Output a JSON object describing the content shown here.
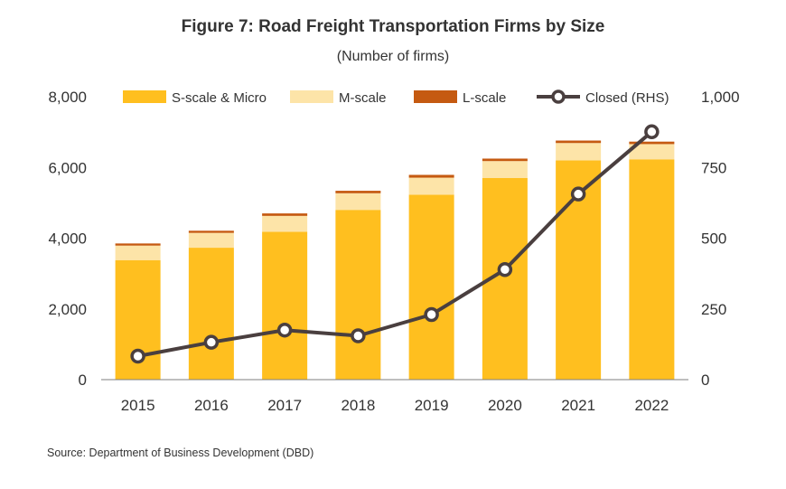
{
  "chart_data": {
    "type": "bar",
    "title": "Figure 7:  Road Freight Transportation Firms by Size",
    "subtitle": "(Number of firms)",
    "categories": [
      "2015",
      "2016",
      "2017",
      "2018",
      "2019",
      "2020",
      "2021",
      "2022"
    ],
    "series": [
      {
        "name": "S-scale & Micro",
        "type": "bar",
        "axis": "left",
        "color": "#FFBF1F",
        "values": [
          3380,
          3730,
          4180,
          4800,
          5230,
          5700,
          6200,
          6230
        ]
      },
      {
        "name": "M-scale",
        "type": "bar",
        "axis": "left",
        "color": "#FDE4A8",
        "values": [
          410,
          420,
          450,
          470,
          480,
          480,
          490,
          430
        ]
      },
      {
        "name": "L-scale",
        "type": "bar",
        "axis": "left",
        "color": "#C55A11",
        "values": [
          60,
          60,
          70,
          70,
          80,
          70,
          70,
          70
        ]
      },
      {
        "name": "Closed (RHS)",
        "type": "line",
        "axis": "right",
        "color": "#4A3F3F",
        "values": [
          83,
          132,
          175,
          155,
          230,
          389,
          656,
          876
        ]
      }
    ],
    "y_left": {
      "min": 0,
      "max": 8000,
      "ticks": [
        "0",
        "2,000",
        "4,000",
        "6,000",
        "8,000"
      ],
      "tick_values": [
        0,
        2000,
        4000,
        6000,
        8000
      ]
    },
    "y_right": {
      "min": 0,
      "max": 1000,
      "ticks": [
        "0",
        "250",
        "500",
        "750",
        "1,000"
      ],
      "tick_values": [
        0,
        250,
        500,
        750,
        1000
      ]
    },
    "stacked": true,
    "grid": false,
    "legend": "top"
  },
  "source": "Source:  Department of Business Development (DBD)"
}
